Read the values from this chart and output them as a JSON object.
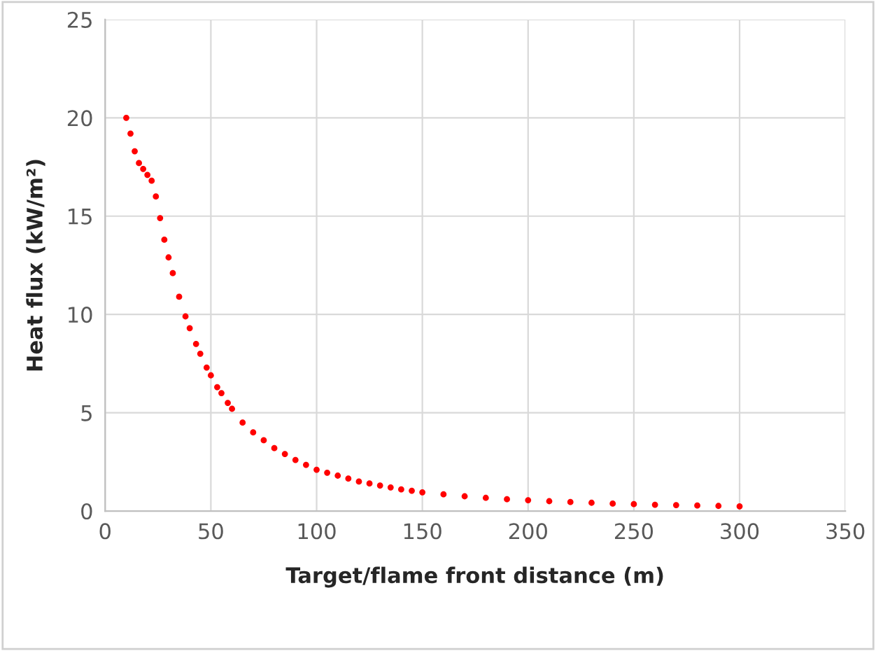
{
  "chart_data": {
    "type": "scatter",
    "xlabel": "Target/flame front distance (m)",
    "ylabel": "Heat flux (kW/m²)",
    "xlim": [
      0,
      350
    ],
    "xticks": [
      0,
      50,
      100,
      150,
      200,
      250,
      300,
      350
    ],
    "ylim": [
      0,
      25
    ],
    "yticks": [
      0,
      5,
      10,
      15,
      20,
      25
    ],
    "grid": true,
    "marker": "circle",
    "series": [
      {
        "color": "#ff0000",
        "x": [
          10,
          12,
          14,
          16,
          18,
          20,
          22,
          24,
          26,
          28,
          30,
          32,
          35,
          38,
          40,
          43,
          45,
          48,
          50,
          53,
          55,
          58,
          60,
          65,
          70,
          75,
          80,
          85,
          90,
          95,
          100,
          105,
          110,
          115,
          120,
          125,
          130,
          135,
          140,
          145,
          150,
          160,
          170,
          180,
          190,
          200,
          210,
          220,
          230,
          240,
          250,
          260,
          270,
          280,
          290,
          300
        ],
        "values": [
          20,
          19.2,
          18.3,
          17.7,
          17.4,
          17.1,
          16.8,
          16.0,
          14.9,
          13.8,
          12.9,
          12.1,
          10.9,
          9.9,
          9.3,
          8.5,
          8.0,
          7.3,
          6.9,
          6.3,
          6.0,
          5.5,
          5.2,
          4.5,
          4.0,
          3.6,
          3.2,
          2.9,
          2.6,
          2.35,
          2.1,
          1.95,
          1.8,
          1.65,
          1.5,
          1.4,
          1.3,
          1.2,
          1.1,
          1.03,
          0.95,
          0.85,
          0.75,
          0.67,
          0.6,
          0.55,
          0.5,
          0.46,
          0.42,
          0.38,
          0.35,
          0.32,
          0.3,
          0.28,
          0.26,
          0.24
        ]
      }
    ]
  }
}
